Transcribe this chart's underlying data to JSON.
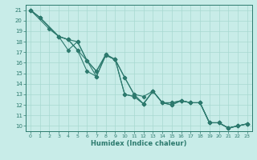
{
  "xlabel": "Humidex (Indice chaleur)",
  "bg_color": "#c8ece8",
  "line_color": "#2d7a6e",
  "grid_color": "#a8d8d0",
  "xlim": [
    -0.5,
    23.5
  ],
  "ylim": [
    9.5,
    21.5
  ],
  "xticks": [
    0,
    1,
    2,
    3,
    4,
    5,
    6,
    7,
    8,
    9,
    10,
    11,
    12,
    13,
    14,
    15,
    16,
    17,
    18,
    19,
    20,
    21,
    22,
    23
  ],
  "yticks": [
    10,
    11,
    12,
    13,
    14,
    15,
    16,
    17,
    18,
    19,
    20,
    21
  ],
  "line1": [
    [
      0,
      21
    ],
    [
      1,
      20.3
    ],
    [
      3,
      18.5
    ],
    [
      4,
      18.2
    ],
    [
      5,
      18.0
    ],
    [
      6,
      16.2
    ],
    [
      7,
      15.2
    ],
    [
      8,
      16.7
    ],
    [
      9,
      16.3
    ],
    [
      10,
      14.6
    ],
    [
      11,
      13.0
    ],
    [
      12,
      12.8
    ],
    [
      13,
      13.3
    ],
    [
      14,
      12.2
    ],
    [
      15,
      12.2
    ],
    [
      16,
      12.4
    ],
    [
      17,
      12.2
    ],
    [
      18,
      12.2
    ],
    [
      19,
      10.3
    ],
    [
      20,
      10.3
    ],
    [
      21,
      9.8
    ],
    [
      22,
      10.0
    ],
    [
      23,
      10.2
    ]
  ],
  "line2": [
    [
      0,
      21
    ],
    [
      1,
      20.3
    ],
    [
      3,
      18.5
    ],
    [
      4,
      18.2
    ],
    [
      5,
      17.2
    ],
    [
      6,
      15.2
    ],
    [
      7,
      14.7
    ],
    [
      8,
      16.7
    ],
    [
      9,
      16.3
    ],
    [
      10,
      13.0
    ],
    [
      11,
      12.8
    ],
    [
      12,
      12.1
    ],
    [
      13,
      13.3
    ],
    [
      14,
      12.2
    ],
    [
      15,
      12.2
    ],
    [
      16,
      12.4
    ],
    [
      17,
      12.2
    ],
    [
      18,
      12.2
    ],
    [
      19,
      10.3
    ],
    [
      20,
      10.3
    ],
    [
      21,
      9.8
    ],
    [
      22,
      10.0
    ],
    [
      23,
      10.2
    ]
  ],
  "line3": [
    [
      0,
      21
    ],
    [
      2,
      19.2
    ],
    [
      3,
      18.5
    ],
    [
      4,
      18.2
    ],
    [
      5,
      17.2
    ],
    [
      6,
      16.2
    ],
    [
      7,
      15.2
    ],
    [
      8,
      16.8
    ],
    [
      9,
      16.3
    ],
    [
      10,
      14.6
    ],
    [
      11,
      13.0
    ],
    [
      12,
      12.1
    ],
    [
      13,
      13.3
    ],
    [
      14,
      12.2
    ],
    [
      15,
      12.0
    ],
    [
      16,
      12.4
    ],
    [
      17,
      12.2
    ],
    [
      18,
      12.2
    ],
    [
      19,
      10.3
    ],
    [
      20,
      10.3
    ],
    [
      21,
      9.8
    ],
    [
      22,
      10.0
    ],
    [
      23,
      10.2
    ]
  ],
  "line4": [
    [
      0,
      21
    ],
    [
      1,
      20.3
    ],
    [
      3,
      18.5
    ],
    [
      4,
      17.2
    ],
    [
      5,
      18.0
    ],
    [
      6,
      16.2
    ],
    [
      7,
      14.7
    ],
    [
      8,
      16.8
    ],
    [
      9,
      16.3
    ],
    [
      10,
      13.0
    ],
    [
      11,
      12.8
    ],
    [
      12,
      12.1
    ],
    [
      13,
      13.3
    ],
    [
      14,
      12.2
    ],
    [
      15,
      12.0
    ],
    [
      16,
      12.4
    ],
    [
      17,
      12.2
    ],
    [
      18,
      12.2
    ],
    [
      19,
      10.3
    ],
    [
      20,
      10.3
    ],
    [
      21,
      9.8
    ],
    [
      22,
      10.0
    ],
    [
      23,
      10.2
    ]
  ]
}
